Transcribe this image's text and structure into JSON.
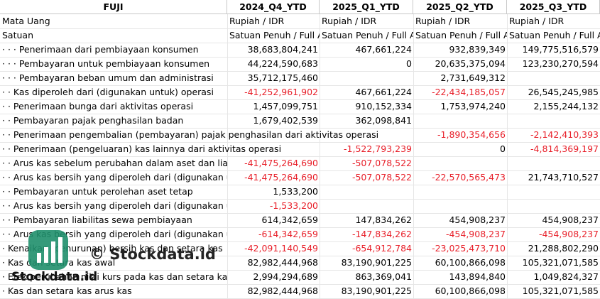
{
  "header": {
    "company": "FUJI",
    "periods": [
      "2024_Q4_YTD",
      "2025_Q1_YTD",
      "2025_Q2_YTD",
      "2025_Q3_YTD"
    ]
  },
  "meta_rows": [
    {
      "label": "Mata Uang",
      "values": [
        "Rupiah / IDR",
        "Rupiah / IDR",
        "Rupiah / IDR",
        "Rupiah / IDR"
      ]
    },
    {
      "label": "Satuan",
      "values": [
        "Satuan Penuh / Full A",
        "Satuan Penuh / Full A",
        "Satuan Penuh / Full A",
        "Satuan Penuh / Full A"
      ]
    }
  ],
  "rows": [
    {
      "label": "· · · Penerimaan dari pembiayaan konsumen",
      "values": [
        "38,683,804,241",
        "467,661,224",
        "932,839,349",
        "149,775,516,579"
      ],
      "neg": [
        false,
        false,
        false,
        false
      ]
    },
    {
      "label": "· · · Pembayaran untuk pembiayaan konsumen",
      "values": [
        "44,224,590,683",
        "0",
        "20,635,375,094",
        "123,230,270,594"
      ],
      "neg": [
        false,
        false,
        false,
        false
      ]
    },
    {
      "label": "· · · Pembayaran beban umum dan administrasi",
      "values": [
        "35,712,175,460",
        "",
        "2,731,649,312",
        ""
      ],
      "neg": [
        false,
        false,
        false,
        false
      ]
    },
    {
      "label": "· · Kas diperoleh dari (digunakan untuk) operasi",
      "values": [
        "-41,252,961,902",
        "467,661,224",
        "-22,434,185,057",
        "26,545,245,985"
      ],
      "neg": [
        true,
        false,
        true,
        false
      ]
    },
    {
      "label": "· · Penerimaan bunga dari aktivitas operasi",
      "values": [
        "1,457,099,751",
        "910,152,334",
        "1,753,974,240",
        "2,155,244,132"
      ],
      "neg": [
        false,
        false,
        false,
        false
      ]
    },
    {
      "label": "· · Pembayaran pajak penghasilan badan",
      "values": [
        "1,679,402,539",
        "362,098,841",
        "",
        ""
      ],
      "neg": [
        false,
        false,
        false,
        false
      ]
    },
    {
      "label": "· · Penerimaan pengembalian (pembayaran) pajak penghasilan dari aktivitas operasi",
      "values": [
        "",
        "",
        "-1,890,354,656",
        "-2,142,410,393"
      ],
      "neg": [
        false,
        false,
        true,
        true
      ],
      "span": true
    },
    {
      "label": "· · Penerimaan (pengeluaran) kas lainnya dari aktivitas operasi",
      "values": [
        "",
        "-1,522,793,239",
        "0",
        "-4,814,369,197"
      ],
      "neg": [
        false,
        true,
        false,
        true
      ],
      "span": true
    },
    {
      "label": "· · Arus kas sebelum perubahan dalam aset dan liabi",
      "values": [
        "-41,475,264,690",
        "-507,078,522",
        "",
        ""
      ],
      "neg": [
        true,
        true,
        false,
        false
      ]
    },
    {
      "label": "· · Arus kas bersih yang diperoleh dari (digunakan ur",
      "values": [
        "-41,475,264,690",
        "-507,078,522",
        "-22,570,565,473",
        "21,743,710,527"
      ],
      "neg": [
        true,
        true,
        true,
        false
      ]
    },
    {
      "label": "· · Pembayaran untuk perolehan aset tetap",
      "values": [
        "1,533,200",
        "",
        "",
        ""
      ],
      "neg": [
        false,
        false,
        false,
        false
      ]
    },
    {
      "label": "· · Arus kas bersih yang diperoleh dari (digunakan ur",
      "values": [
        "-1,533,200",
        "",
        "",
        ""
      ],
      "neg": [
        true,
        false,
        false,
        false
      ]
    },
    {
      "label": "· · Pembayaran liabilitas sewa pembiayaan",
      "values": [
        "614,342,659",
        "147,834,262",
        "454,908,237",
        "454,908,237"
      ],
      "neg": [
        false,
        false,
        false,
        false
      ]
    },
    {
      "label": "· · Arus kas bersih yang diperoleh dari (digunakan ur",
      "values": [
        "-614,342,659",
        "-147,834,262",
        "-454,908,237",
        "-454,908,237"
      ],
      "neg": [
        true,
        true,
        true,
        true
      ]
    },
    {
      "label": "· Kenaikan (penurunan) bersih kas dan setara kas",
      "values": [
        "-42,091,140,549",
        "-654,912,784",
        "-23,025,473,710",
        "21,288,802,290"
      ],
      "neg": [
        true,
        true,
        true,
        false
      ]
    },
    {
      "label": "· Kas dan setara kas awal",
      "values": [
        "82,982,444,968",
        "83,190,901,225",
        "60,100,866,098",
        "105,321,071,585"
      ],
      "neg": [
        false,
        false,
        false,
        false
      ]
    },
    {
      "label": "· Efek perubahan nilai kurs pada kas dan setara kas",
      "values": [
        "2,994,294,689",
        "863,369,041",
        "143,894,840",
        "1,049,824,327"
      ],
      "neg": [
        false,
        false,
        false,
        false
      ]
    },
    {
      "label": "· Kas dan setara kas arus kas",
      "values": [
        "82,982,444,968",
        "83,190,901,225",
        "60,100,866,098",
        "105,321,071,585"
      ],
      "neg": [
        false,
        false,
        false,
        false
      ]
    }
  ],
  "watermark": {
    "text": "© Stockdata.id",
    "logo_text": "Stockdata.id",
    "logo_color": "#1f8f6b"
  }
}
